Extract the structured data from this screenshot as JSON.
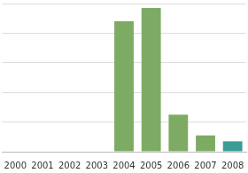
{
  "chart_data": {
    "type": "bar",
    "categories": [
      "2000",
      "2001",
      "2002",
      "2003",
      "2004",
      "2005",
      "2006",
      "2007",
      "2008"
    ],
    "values": [
      0,
      0,
      0,
      0,
      4.4,
      4.85,
      1.25,
      0.55,
      0.35
    ],
    "colors": [
      "#7dab64",
      "#7dab64",
      "#7dab64",
      "#7dab64",
      "#7dab64",
      "#7dab64",
      "#7dab64",
      "#7dab64",
      "#3a9e96"
    ],
    "ylim": [
      0,
      5
    ],
    "yticks": [
      0,
      1,
      2,
      3,
      4,
      5
    ],
    "grid": true,
    "tick_labels": "x"
  }
}
